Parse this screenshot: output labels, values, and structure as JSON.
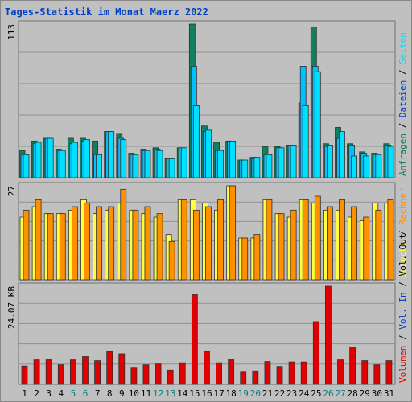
{
  "title": "Tages-Statistik im Monat Maerz 2022",
  "colors": {
    "bg": "#c0c0c0",
    "title": "#0040c0",
    "grid": "#909090",
    "anfragen": "#108060",
    "dateien": "#00c0ff",
    "seiten": "#00e0ff",
    "besuche": "#ffff40",
    "rechner": "#ff9000",
    "volumen": "#e00000",
    "weekend": "#008080",
    "text": "#000000"
  },
  "chart_data": [
    {
      "type": "bar",
      "panel": "top",
      "axis_max_label": "113",
      "ylim": [
        0,
        113
      ],
      "side_legend": [
        {
          "text": "Anfragen",
          "colorKey": "anfragen"
        },
        {
          "text": " / ",
          "colorKey": "text"
        },
        {
          "text": "Dateien",
          "colorKey": "title"
        },
        {
          "text": " / ",
          "colorKey": "text"
        },
        {
          "text": "Seiten",
          "colorKey": "seiten"
        }
      ],
      "series": [
        {
          "name": "Anfragen",
          "colorKey": "anfragen",
          "values": [
            20,
            27,
            29,
            21,
            29,
            29,
            27,
            34,
            32,
            18,
            21,
            22,
            14,
            22,
            113,
            38,
            26,
            27,
            13,
            15,
            23,
            23,
            24,
            55,
            111,
            25,
            37,
            25,
            19,
            18,
            25
          ]
        },
        {
          "name": "Dateien",
          "colorKey": "dateien",
          "values": [
            17,
            25,
            29,
            20,
            25,
            27,
            17,
            34,
            29,
            17,
            20,
            21,
            14,
            22,
            82,
            34,
            20,
            27,
            13,
            14,
            17,
            22,
            24,
            82,
            82,
            23,
            29,
            24,
            18,
            17,
            24
          ]
        },
        {
          "name": "Seiten",
          "colorKey": "seiten",
          "values": [
            17,
            26,
            29,
            20,
            26,
            28,
            17,
            34,
            28,
            17,
            20,
            20,
            14,
            22,
            53,
            35,
            20,
            27,
            13,
            15,
            17,
            22,
            24,
            53,
            78,
            24,
            34,
            16,
            16,
            17,
            23
          ]
        }
      ]
    },
    {
      "type": "bar",
      "panel": "middle",
      "axis_max_label": "27",
      "ylim": [
        0,
        27
      ],
      "side_legend": [
        {
          "text": "Besuche",
          "colorKey": "besuche"
        },
        {
          "text": " / ",
          "colorKey": "text"
        },
        {
          "text": "Rechner",
          "colorKey": "rechner"
        }
      ],
      "series": [
        {
          "name": "Besuche",
          "colorKey": "besuche",
          "values": [
            18,
            21,
            19,
            19,
            20,
            23,
            19,
            20,
            22,
            20,
            19,
            18,
            13,
            23,
            23,
            22,
            20,
            27,
            12,
            12,
            23,
            19,
            18,
            23,
            22,
            20,
            20,
            18,
            17,
            22,
            22
          ]
        },
        {
          "name": "Rechner",
          "colorKey": "rechner",
          "values": [
            20,
            23,
            19,
            19,
            21,
            22,
            21,
            21,
            26,
            20,
            21,
            19,
            11,
            23,
            20,
            21,
            23,
            27,
            12,
            13,
            23,
            19,
            20,
            23,
            24,
            21,
            23,
            21,
            18,
            20,
            23
          ]
        }
      ]
    },
    {
      "type": "bar",
      "panel": "bottom",
      "axis_max_label": "24.07 KB",
      "ylim": [
        0,
        24.07
      ],
      "side_legend": [
        {
          "text": "Volumen",
          "colorKey": "volumen"
        },
        {
          "text": " / ",
          "colorKey": "text"
        },
        {
          "text": "Vol. In",
          "colorKey": "title"
        },
        {
          "text": " / ",
          "colorKey": "text"
        },
        {
          "text": "Vol. Out",
          "colorKey": "text"
        }
      ],
      "series": [
        {
          "name": "Volumen",
          "colorKey": "volumen",
          "values": [
            4.5,
            6.0,
            6.2,
            4.8,
            6.0,
            6.8,
            5.8,
            8.0,
            7.5,
            4.0,
            4.8,
            5.0,
            3.5,
            5.3,
            22.0,
            8.0,
            5.3,
            6.2,
            3.0,
            3.3,
            5.6,
            4.4,
            5.5,
            5.5,
            15.4,
            24.07,
            6.0,
            9.2,
            5.8,
            4.8,
            5.8
          ]
        }
      ]
    }
  ],
  "x_labels": [
    "1",
    "2",
    "3",
    "4",
    "5",
    "6",
    "7",
    "8",
    "9",
    "10",
    "11",
    "12",
    "13",
    "14",
    "15",
    "16",
    "17",
    "18",
    "19",
    "20",
    "21",
    "22",
    "23",
    "24",
    "25",
    "26",
    "27",
    "28",
    "29",
    "30",
    "31"
  ],
  "weekend_days": [
    5,
    6,
    12,
    13,
    19,
    20,
    26,
    27
  ]
}
